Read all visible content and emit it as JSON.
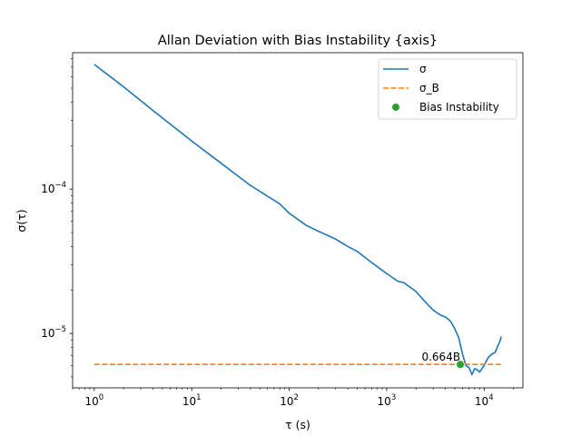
{
  "chart_data": {
    "type": "line",
    "title": "Allan Deviation with Bias Instability {axis}",
    "xlabel": "τ (s)",
    "ylabel": "σ(τ)",
    "x_scale": "log",
    "y_scale": "log",
    "xlim": [
      0.6,
      25000
    ],
    "ylim": [
      4.2e-06,
      0.00088
    ],
    "x_ticks": [
      {
        "value": 1,
        "label": "10",
        "exp": "0"
      },
      {
        "value": 10,
        "label": "10",
        "exp": "1"
      },
      {
        "value": 100,
        "label": "10",
        "exp": "2"
      },
      {
        "value": 1000,
        "label": "10",
        "exp": "3"
      },
      {
        "value": 10000,
        "label": "10",
        "exp": "4"
      }
    ],
    "y_ticks": [
      {
        "value": 1e-05,
        "label": "10",
        "exp": "−5"
      },
      {
        "value": 0.0001,
        "label": "10",
        "exp": "−4"
      }
    ],
    "grid": false,
    "legend_position": "top-right",
    "series": [
      {
        "name": "σ",
        "style": "solid",
        "color": "#1f77b4",
        "x": [
          1,
          2,
          4,
          10,
          20,
          40,
          80,
          100,
          150,
          200,
          300,
          400,
          500,
          700,
          1000,
          1300,
          1500,
          2000,
          2500,
          3000,
          3500,
          4000,
          4500,
          5000,
          5500,
          6000,
          6500,
          7000,
          7500,
          8000,
          8500,
          9000,
          10000,
          11000,
          12000,
          13000,
          13800,
          14500,
          15000
        ],
        "y": [
          0.00073,
          0.00051,
          0.00035,
          0.000215,
          0.000151,
          0.000106,
          7.9e-05,
          6.8e-05,
          5.6e-05,
          5.1e-05,
          4.5e-05,
          4e-05,
          3.7e-05,
          3.1e-05,
          2.6e-05,
          2.3e-05,
          2.25e-05,
          1.95e-05,
          1.65e-05,
          1.45e-05,
          1.35e-05,
          1.3e-05,
          1.22e-05,
          1.08e-05,
          9.3e-06,
          7.2e-06,
          6e-06,
          5.8e-06,
          5.2e-06,
          5.7e-06,
          5.6e-06,
          5.4e-06,
          6e-06,
          6.8e-06,
          7.2e-06,
          7.4e-06,
          8.2e-06,
          8.8e-06,
          9.5e-06
        ]
      },
      {
        "name": "σ_B",
        "style": "dashed",
        "color": "#ff7f0e",
        "x": [
          1,
          15000
        ],
        "y": [
          6.1e-06,
          6.1e-06
        ]
      },
      {
        "name": "Bias Instability",
        "style": "marker",
        "color": "#2ca02c",
        "x": [
          5700
        ],
        "y": [
          6.1e-06
        ]
      }
    ],
    "annotations": [
      {
        "text": "0.664B",
        "x": 5700,
        "y": 6.1e-06
      }
    ]
  }
}
